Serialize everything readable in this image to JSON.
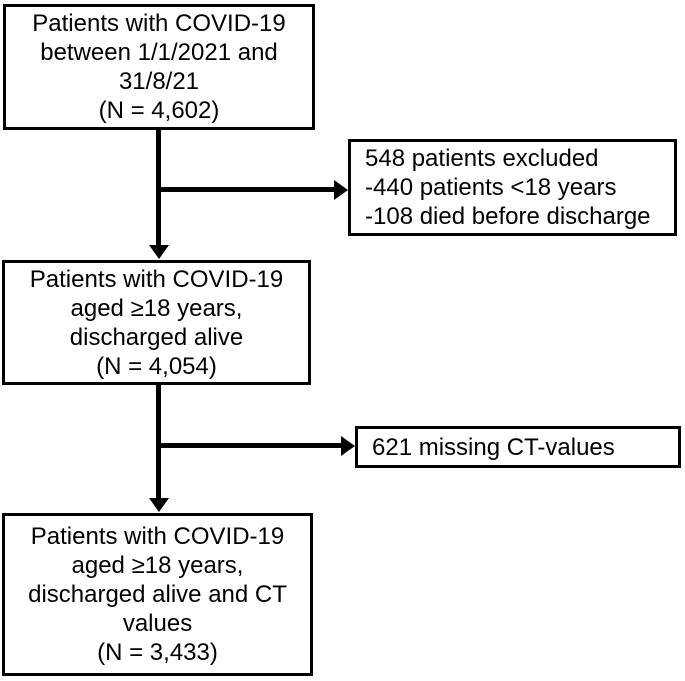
{
  "diagram": {
    "type": "flowchart",
    "colors": {
      "line": "#000000",
      "text": "#000000",
      "background": "#ffffff",
      "box_fill": "#ffffff"
    },
    "nodes": {
      "initial": {
        "text": "Patients with COVID-19\nbetween 1/1/2021 and\n31/8/21\n(N = 4,602)"
      },
      "excluded": {
        "text": "548 patients excluded\n-440 patients <18 years\n-108 died before discharge"
      },
      "adults_discharged": {
        "text": "Patients with COVID-19\naged ≥18 years,\ndischarged alive\n(N = 4,054)"
      },
      "missing_ct": {
        "text": "621 missing CT-values"
      },
      "final": {
        "text": "Patients with COVID-19\naged ≥18 years,\ndischarged alive and CT\nvalues\n(N = 3,433)"
      }
    }
  }
}
